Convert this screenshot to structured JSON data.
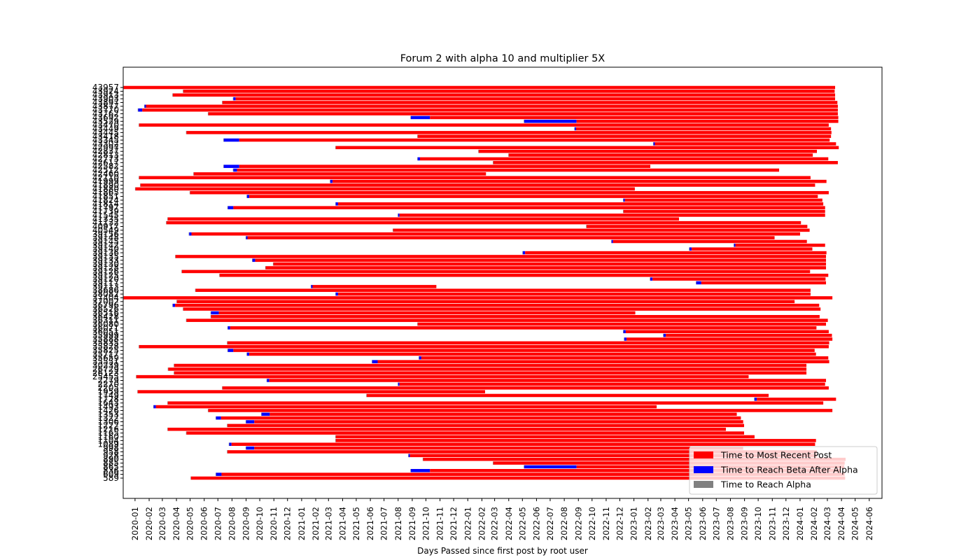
{
  "chart_data": {
    "type": "gantt",
    "title": "Forum 2 with alpha 10 and multiplier 5X",
    "x_label": "Days Passed since first post by root user",
    "categories": [
      "43957",
      "43924",
      "43913",
      "43903",
      "43897",
      "43877",
      "43770",
      "43762",
      "43692",
      "43529",
      "43470",
      "43449",
      "43445",
      "43418",
      "43345",
      "43302",
      "42997",
      "42837",
      "42813",
      "42773",
      "42617",
      "42582",
      "42512",
      "42460",
      "42110",
      "41999",
      "41890",
      "41880",
      "41865",
      "41851",
      "41824",
      "41814",
      "41797",
      "41739",
      "41545",
      "41335",
      "41132",
      "40917",
      "40549",
      "39156",
      "39148",
      "39145",
      "39142",
      "39140",
      "39136",
      "39135",
      "39133",
      "39130",
      "39128",
      "39126",
      "39125",
      "39120",
      "39117",
      "39113",
      "38686",
      "38082",
      "37404",
      "37002",
      "36796",
      "36526",
      "36516",
      "36428",
      "36311",
      "36080",
      "36071",
      "36051",
      "35999",
      "35888",
      "35835",
      "35828",
      "35825",
      "35717",
      "35659",
      "35551",
      "30239",
      "26729",
      "26123",
      "25455",
      "2279",
      "2270",
      "2205",
      "1959",
      "1749",
      "1728",
      "1643",
      "1493",
      "1426",
      "1353",
      "1322",
      "1306",
      "1222",
      "1216",
      "1165",
      "1160",
      "1104",
      "1089",
      "998",
      "958",
      "928",
      "890",
      "885",
      "865",
      "836",
      "609",
      "589"
    ],
    "starts": [
      -26,
      105,
      82,
      215,
      191,
      20,
      6,
      160,
      605,
      854,
      8,
      965,
      112,
      620,
      194,
      1138,
      440,
      754,
      820,
      620,
      786,
      194,
      215,
      128,
      8,
      428,
      11,
      0,
      120,
      245,
      1072,
      440,
      203,
      1072,
      577,
      71,
      68,
      991,
      566,
      118,
      243,
      1046,
      1315,
      1217,
      851,
      88,
      257,
      303,
      286,
      102,
      185,
      1131,
      1232,
      386,
      132,
      440,
      -26,
      91,
      82,
      105,
      166,
      166,
      112,
      620,
      203,
      1072,
      1160,
      1074,
      202,
      8,
      203,
      245,
      623,
      520,
      85,
      72,
      85,
      2,
      289,
      577,
      191,
      5,
      508,
      1360,
      71,
      40,
      160,
      277,
      177,
      243,
      202,
      71,
      112,
      440,
      440,
      206,
      243,
      202,
      600,
      632,
      786,
      854,
      605,
      177,
      122
    ],
    "series": [
      {
        "name": "Time to Most Recent Post",
        "color": "#ff0000",
        "values": [
          1563,
          1431,
          1455,
          1317,
          1351,
          1520,
          1528,
          1383,
          897,
          575,
          1515,
          560,
          1417,
          908,
          1297,
          398,
          1105,
          743,
          668,
          897,
          757,
          903,
          1191,
          642,
          1475,
          1085,
          1482,
          1097,
          1403,
          1249,
          434,
          1066,
          1300,
          443,
          935,
          1123,
          1394,
          485,
          915,
          1337,
          1158,
          426,
          197,
          265,
          662,
          1429,
          1254,
          1214,
          1231,
          1380,
          1337,
          380,
          274,
          272,
          1351,
          1038,
          1557,
          1357,
          1415,
          1400,
          915,
          1337,
          1409,
          897,
          1288,
          446,
          365,
          452,
          1322,
          1515,
          1277,
          1245,
          894,
          992,
          1389,
          1402,
          1389,
          1345,
          1223,
          935,
          1332,
          763,
          883,
          174,
          1440,
          1100,
          1371,
          1026,
          1142,
          1074,
          1135,
          1226,
          1225,
          920,
          1055,
          1282,
          1074,
          1295,
          894,
          928,
          772,
          588,
          903,
          1369,
          1437
        ]
      },
      {
        "name": "Time to Reach Beta After Alpha",
        "color": "#0000ff",
        "values": [
          0,
          0,
          0,
          5,
          0,
          3,
          9,
          0,
          42,
          115,
          0,
          3,
          0,
          0,
          34,
          3,
          0,
          0,
          0,
          5,
          0,
          34,
          8,
          0,
          0,
          5,
          0,
          0,
          0,
          5,
          3,
          5,
          12,
          0,
          3,
          0,
          0,
          0,
          0,
          5,
          3,
          3,
          3,
          5,
          5,
          0,
          6,
          0,
          0,
          0,
          0,
          5,
          11,
          3,
          0,
          5,
          0,
          0,
          5,
          0,
          17,
          0,
          0,
          0,
          5,
          5,
          5,
          5,
          0,
          0,
          12,
          5,
          5,
          12,
          0,
          0,
          0,
          0,
          5,
          3,
          0,
          0,
          0,
          5,
          0,
          5,
          0,
          18,
          11,
          18,
          0,
          0,
          0,
          0,
          0,
          5,
          18,
          0,
          3,
          0,
          0,
          115,
          42,
          12,
          0
        ]
      },
      {
        "name": "Time to Reach Alpha",
        "color": "#808080",
        "values": [
          1,
          1,
          1,
          1,
          1,
          1,
          1,
          1,
          1,
          1,
          1,
          1,
          1,
          1,
          1,
          1,
          1,
          1,
          1,
          1,
          1,
          1,
          1,
          1,
          1,
          1,
          1,
          1,
          1,
          1,
          1,
          1,
          1,
          1,
          1,
          1,
          1,
          1,
          1,
          1,
          1,
          1,
          1,
          1,
          1,
          1,
          1,
          1,
          1,
          1,
          1,
          1,
          1,
          1,
          1,
          1,
          1,
          1,
          1,
          1,
          1,
          1,
          1,
          1,
          1,
          1,
          1,
          1,
          1,
          1,
          1,
          1,
          1,
          1,
          1,
          1,
          1,
          1,
          1,
          1,
          1,
          1,
          1,
          1,
          1,
          1,
          1,
          1,
          1,
          1,
          1,
          1,
          1,
          1,
          1,
          1,
          1,
          1,
          1,
          1,
          1,
          1,
          1,
          1,
          1
        ]
      }
    ],
    "xlim": [
      -26,
      1641
    ],
    "xticks": [
      {
        "value": 0,
        "label": "2020-01"
      },
      {
        "value": 31,
        "label": "2020-02"
      },
      {
        "value": 60,
        "label": "2020-03"
      },
      {
        "value": 91,
        "label": "2020-04"
      },
      {
        "value": 121,
        "label": "2020-05"
      },
      {
        "value": 152,
        "label": "2020-06"
      },
      {
        "value": 182,
        "label": "2020-07"
      },
      {
        "value": 213,
        "label": "2020-08"
      },
      {
        "value": 244,
        "label": "2020-09"
      },
      {
        "value": 274,
        "label": "2020-10"
      },
      {
        "value": 305,
        "label": "2020-11"
      },
      {
        "value": 335,
        "label": "2020-12"
      },
      {
        "value": 366,
        "label": "2021-01"
      },
      {
        "value": 397,
        "label": "2021-02"
      },
      {
        "value": 425,
        "label": "2021-03"
      },
      {
        "value": 456,
        "label": "2021-04"
      },
      {
        "value": 486,
        "label": "2021-05"
      },
      {
        "value": 517,
        "label": "2021-06"
      },
      {
        "value": 547,
        "label": "2021-07"
      },
      {
        "value": 578,
        "label": "2021-08"
      },
      {
        "value": 609,
        "label": "2021-09"
      },
      {
        "value": 639,
        "label": "2021-10"
      },
      {
        "value": 670,
        "label": "2021-11"
      },
      {
        "value": 700,
        "label": "2021-12"
      },
      {
        "value": 731,
        "label": "2022-01"
      },
      {
        "value": 762,
        "label": "2022-02"
      },
      {
        "value": 790,
        "label": "2022-03"
      },
      {
        "value": 821,
        "label": "2022-04"
      },
      {
        "value": 851,
        "label": "2022-05"
      },
      {
        "value": 882,
        "label": "2022-06"
      },
      {
        "value": 912,
        "label": "2022-07"
      },
      {
        "value": 943,
        "label": "2022-08"
      },
      {
        "value": 974,
        "label": "2022-09"
      },
      {
        "value": 1004,
        "label": "2022-10"
      },
      {
        "value": 1035,
        "label": "2022-11"
      },
      {
        "value": 1065,
        "label": "2022-12"
      },
      {
        "value": 1096,
        "label": "2023-01"
      },
      {
        "value": 1127,
        "label": "2023-02"
      },
      {
        "value": 1155,
        "label": "2023-03"
      },
      {
        "value": 1186,
        "label": "2023-04"
      },
      {
        "value": 1216,
        "label": "2023-05"
      },
      {
        "value": 1247,
        "label": "2023-06"
      },
      {
        "value": 1277,
        "label": "2023-07"
      },
      {
        "value": 1308,
        "label": "2023-08"
      },
      {
        "value": 1339,
        "label": "2023-09"
      },
      {
        "value": 1369,
        "label": "2023-10"
      },
      {
        "value": 1400,
        "label": "2023-11"
      },
      {
        "value": 1430,
        "label": "2023-12"
      },
      {
        "value": 1461,
        "label": "2024-01"
      },
      {
        "value": 1492,
        "label": "2024-02"
      },
      {
        "value": 1521,
        "label": "2024-03"
      },
      {
        "value": 1552,
        "label": "2024-04"
      },
      {
        "value": 1582,
        "label": "2024-05"
      },
      {
        "value": 1613,
        "label": "2024-06"
      }
    ],
    "legend": "lower right"
  }
}
